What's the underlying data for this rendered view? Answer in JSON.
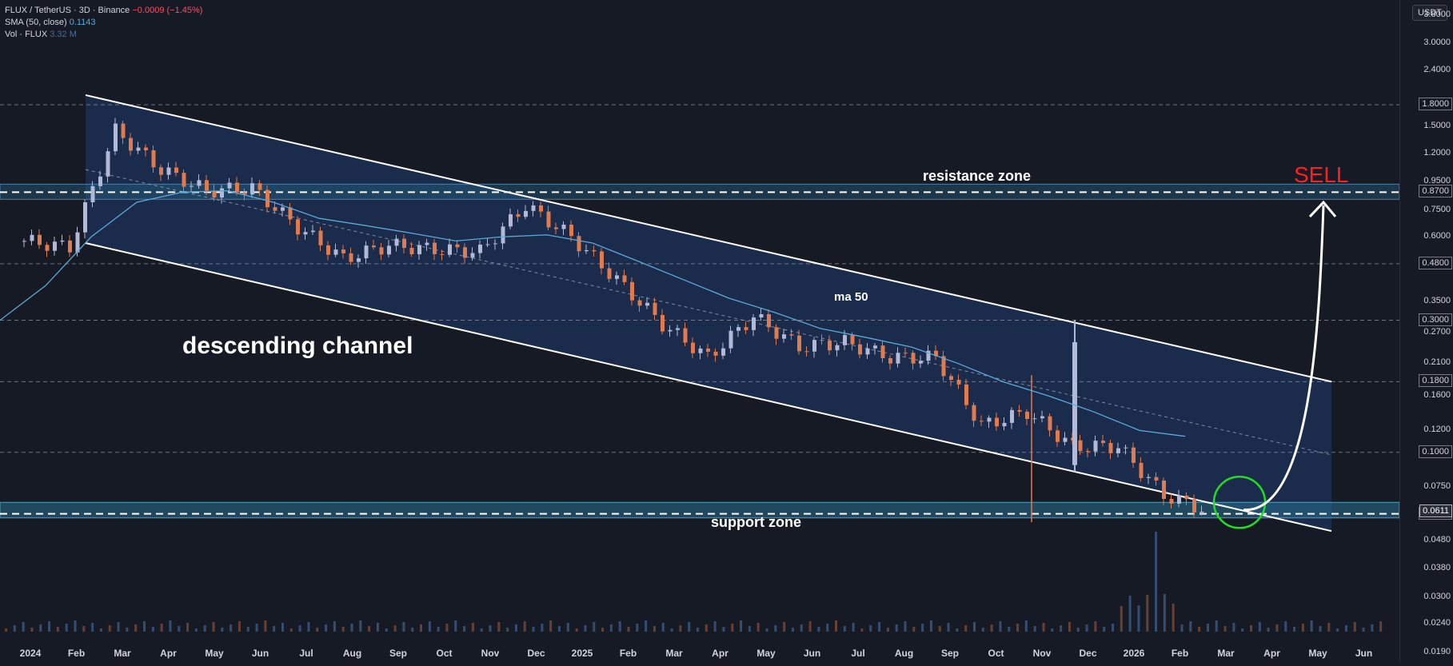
{
  "legend": {
    "symbol": "FLUX / TetherUS · 3D · Binance",
    "change": "−0.0009 (−1.45%)",
    "sma_label": "SMA (50, close)",
    "sma_value": "0.1143",
    "vol_label": "Vol · FLUX",
    "vol_value": "3.32 M"
  },
  "currency": "USDT",
  "price_axis": {
    "ticks": [
      "3.8000",
      "3.0000",
      "2.4000",
      "1.5000",
      "1.2000",
      "0.9500",
      "0.7500",
      "0.6000",
      "0.3500",
      "0.2700",
      "0.2100",
      "0.1600",
      "0.1200",
      "0.0750",
      "0.0480",
      "0.0380",
      "0.0300",
      "0.0240",
      "0.0190"
    ],
    "boxed": [
      "1.8000",
      "0.8700",
      "0.4800",
      "0.3000",
      "0.1800",
      "0.1000",
      "0.0600"
    ],
    "current": "0.0611"
  },
  "time_axis": [
    "2024",
    "Feb",
    "Mar",
    "Apr",
    "May",
    "Jun",
    "Jul",
    "Aug",
    "Sep",
    "Oct",
    "Nov",
    "Dec",
    "2025",
    "Feb",
    "Mar",
    "Apr",
    "May",
    "Jun",
    "Jul",
    "Aug",
    "Sep",
    "Oct",
    "Nov",
    "Dec",
    "2026",
    "Feb",
    "Mar",
    "Apr",
    "May",
    "Jun"
  ],
  "annotations": {
    "channel": "descending channel",
    "resistance": "resistance zone",
    "support": "support zone",
    "ma": "ma 50",
    "signal": "SELL"
  },
  "colors": {
    "background": "#161a25",
    "up": "#b2b9d6",
    "down": "#e07a4f",
    "sma": "#5ea8d6",
    "channel_fill": "#1f3a6b",
    "zone_fill": "#2a6f8f",
    "sell": "#ff1f1f",
    "circle": "#22dd22"
  },
  "chart_data": {
    "type": "candlestick",
    "title": "FLUX / TetherUS · 3D · Binance",
    "scale": "log",
    "ylim": [
      0.0175,
      4.3
    ],
    "x": [
      "2024-01",
      "2024-02",
      "2024-03",
      "2024-04",
      "2024-05",
      "2024-06",
      "2024-07",
      "2024-08",
      "2024-09",
      "2024-10",
      "2024-11",
      "2024-12",
      "2025-01",
      "2025-02",
      "2025-03",
      "2025-04",
      "2025-05",
      "2025-06",
      "2025-07",
      "2025-08",
      "2025-09",
      "2025-10",
      "2025-11",
      "2025-12",
      "2026-01",
      "2026-02",
      "2026-03"
    ],
    "close": [
      0.58,
      0.55,
      1.45,
      1.05,
      0.88,
      0.9,
      0.65,
      0.5,
      0.56,
      0.54,
      0.53,
      0.78,
      0.6,
      0.42,
      0.29,
      0.22,
      0.31,
      0.24,
      0.25,
      0.22,
      0.22,
      0.125,
      0.14,
      0.105,
      0.105,
      0.07,
      0.0611
    ],
    "high": [
      0.7,
      0.62,
      1.8,
      1.45,
      1.0,
      1.05,
      0.72,
      0.6,
      0.62,
      0.6,
      0.62,
      0.9,
      0.82,
      0.5,
      0.35,
      0.28,
      0.37,
      0.32,
      0.28,
      0.26,
      0.25,
      0.2,
      0.3,
      0.16,
      0.13,
      0.1,
      0.072
    ],
    "low": [
      0.47,
      0.5,
      0.58,
      0.86,
      0.78,
      0.8,
      0.52,
      0.4,
      0.45,
      0.48,
      0.48,
      0.6,
      0.52,
      0.35,
      0.23,
      0.17,
      0.2,
      0.2,
      0.18,
      0.2,
      0.19,
      0.055,
      0.095,
      0.1,
      0.095,
      0.065,
      0.059
    ],
    "series": [
      {
        "name": "SMA (50, close)",
        "values": [
          0.3,
          0.4,
          0.6,
          0.8,
          0.87,
          0.88,
          0.8,
          0.7,
          0.66,
          0.62,
          0.58,
          0.6,
          0.61,
          0.57,
          0.49,
          0.42,
          0.36,
          0.32,
          0.28,
          0.26,
          0.24,
          0.21,
          0.18,
          0.16,
          0.14,
          0.12,
          0.1143
        ]
      }
    ],
    "levels": {
      "boxed": [
        1.8,
        0.87,
        0.48,
        0.3,
        0.18,
        0.1,
        0.06
      ],
      "resistance_zone": [
        0.82,
        0.93
      ],
      "support_zone": [
        0.058,
        0.066
      ]
    }
  }
}
